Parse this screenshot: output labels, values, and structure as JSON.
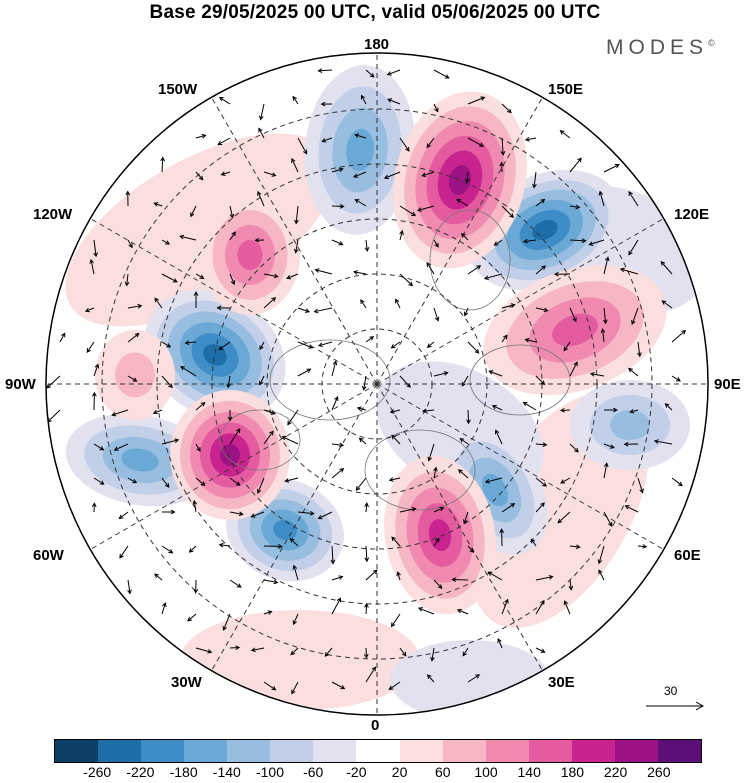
{
  "title": "Base 29/05/2025 00 UTC, valid 05/06/2025 00 UTC",
  "brand": "MODES",
  "brand_mark": "©",
  "map_labels": {
    "lon_180": "180",
    "lon_150w": "150W",
    "lon_150e": "150E",
    "lon_120w": "120W",
    "lon_120e": "120E",
    "lon_90w": "90W",
    "lon_90e": "90E",
    "lon_60w": "60W",
    "lon_60e": "60E",
    "lon_30w": "30W",
    "lon_30e": "30E",
    "lon_0": "0"
  },
  "vector_scale": "30",
  "colorbar": {
    "colors": [
      "#0d3f66",
      "#1d6ea6",
      "#3f8dc7",
      "#6aa8d6",
      "#97bde0",
      "#c1cfe8",
      "#e2e1f0",
      "#ffffff",
      "#fbdede",
      "#f6b6c4",
      "#f08ab1",
      "#e45c9f",
      "#c8238f",
      "#9a1283",
      "#5c0f78"
    ],
    "ticks": [
      "-260",
      "-220",
      "-180",
      "-140",
      "-100",
      "-60",
      "-20",
      "20",
      "60",
      "100",
      "140",
      "180",
      "220",
      "260"
    ]
  }
}
